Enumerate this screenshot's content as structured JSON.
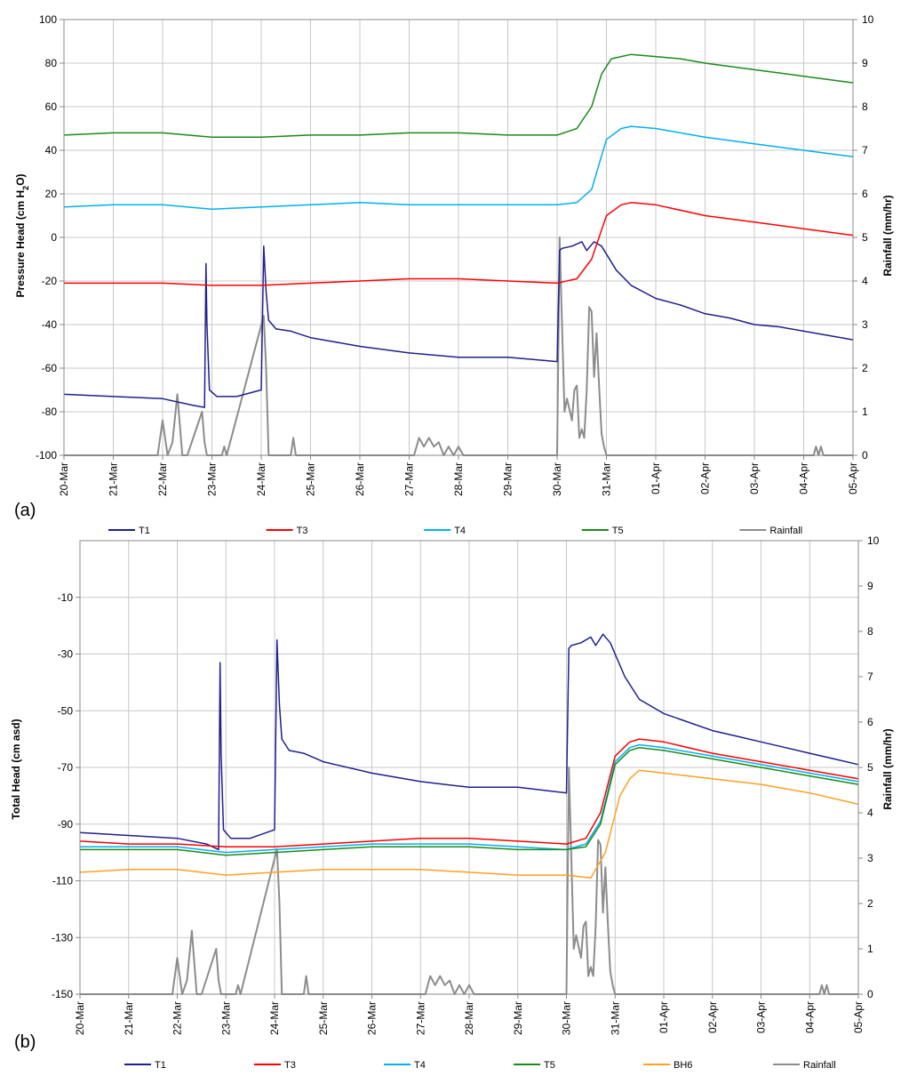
{
  "chart_data": [
    {
      "type": "line",
      "panel_label": "(a)",
      "xlim": [
        0,
        16
      ],
      "x_tick_labels": [
        "20-Mar",
        "21-Mar",
        "22-Mar",
        "23-Mar",
        "24-Mar",
        "25-Mar",
        "26-Mar",
        "27-Mar",
        "28-Mar",
        "29-Mar",
        "30-Mar",
        "31-Mar",
        "01-Apr",
        "02-Apr",
        "03-Apr",
        "04-Apr",
        "05-Apr"
      ],
      "ylabel": "Pressure Head (cm H2O)",
      "ylim": [
        -100,
        100
      ],
      "y_ticks": [
        -100,
        -80,
        -60,
        -40,
        -20,
        0,
        20,
        40,
        60,
        80,
        100
      ],
      "y2label": "Rainfall (mm/hr)",
      "y2lim": [
        0,
        10
      ],
      "y2_ticks": [
        0,
        1,
        2,
        3,
        4,
        5,
        6,
        7,
        8,
        9,
        10
      ],
      "legend_position": "bottom",
      "series": [
        {
          "name": "T1",
          "axis": "left",
          "color": "#1f1f8f",
          "x": [
            0,
            1,
            2,
            2.6,
            2.85,
            2.88,
            2.9,
            2.95,
            3.1,
            3.5,
            4.0,
            4.05,
            4.1,
            4.15,
            4.3,
            4.6,
            5,
            6,
            7,
            8,
            9,
            10,
            10.05,
            10.1,
            10.3,
            10.5,
            10.6,
            10.75,
            10.9,
            11.2,
            11.5,
            12,
            12.5,
            13,
            13.5,
            14,
            14.5,
            15,
            15.5,
            16
          ],
          "y": [
            -72,
            -73,
            -74,
            -77,
            -78,
            -12,
            -40,
            -70,
            -73,
            -73,
            -70,
            -4,
            -25,
            -38,
            -42,
            -43,
            -46,
            -50,
            -53,
            -55,
            -55,
            -57,
            -6,
            -5,
            -4,
            -2,
            -6,
            -2,
            -4,
            -15,
            -22,
            -28,
            -31,
            -35,
            -37,
            -40,
            -41,
            -43,
            -45,
            -47
          ]
        },
        {
          "name": "T3",
          "axis": "left",
          "color": "#ff0000",
          "x": [
            0,
            1,
            2,
            3,
            4,
            5,
            6,
            7,
            8,
            9,
            10,
            10.4,
            10.7,
            11,
            11.3,
            11.5,
            12,
            13,
            14,
            15,
            16
          ],
          "y": [
            -21,
            -21,
            -21,
            -22,
            -22,
            -21,
            -20,
            -19,
            -19,
            -20,
            -21,
            -19,
            -10,
            10,
            15,
            16,
            15,
            10,
            7,
            4,
            1
          ]
        },
        {
          "name": "T4",
          "axis": "left",
          "color": "#00b0f0",
          "x": [
            0,
            1,
            2,
            3,
            4,
            5,
            6,
            7,
            8,
            9,
            10,
            10.4,
            10.7,
            11,
            11.3,
            11.5,
            12,
            13,
            14,
            15,
            16
          ],
          "y": [
            14,
            15,
            15,
            13,
            14,
            15,
            16,
            15,
            15,
            15,
            15,
            16,
            22,
            45,
            50,
            51,
            50,
            46,
            43,
            40,
            37
          ]
        },
        {
          "name": "T5",
          "axis": "left",
          "color": "#1a8a1a",
          "x": [
            0,
            1,
            2,
            3,
            4,
            5,
            6,
            7,
            8,
            9,
            10,
            10.4,
            10.7,
            10.9,
            11.1,
            11.3,
            11.5,
            12,
            12.5,
            13,
            14,
            15,
            16
          ],
          "y": [
            47,
            48,
            48,
            46,
            46,
            47,
            47,
            48,
            48,
            47,
            47,
            50,
            60,
            75,
            82,
            83,
            84,
            83,
            82,
            80,
            77,
            74,
            71
          ]
        },
        {
          "name": "Rainfall",
          "axis": "right",
          "color": "#8c8c8c",
          "x": [
            0,
            1.9,
            2.0,
            2.1,
            2.2,
            2.3,
            2.4,
            2.5,
            2.8,
            2.85,
            2.9,
            3.2,
            3.25,
            3.3,
            4.05,
            4.1,
            4.15,
            4.2,
            4.6,
            4.65,
            4.7,
            7.1,
            7.2,
            7.3,
            7.4,
            7.5,
            7.6,
            7.7,
            7.8,
            7.9,
            8.0,
            8.1,
            8.2,
            10.0,
            10.05,
            10.1,
            10.15,
            10.2,
            10.3,
            10.35,
            10.4,
            10.45,
            10.5,
            10.55,
            10.6,
            10.65,
            10.7,
            10.75,
            10.8,
            10.85,
            10.9,
            10.95,
            11.0,
            15.2,
            15.25,
            15.3,
            15.35,
            15.4,
            15.45,
            16
          ],
          "y": [
            0,
            0,
            0.8,
            0,
            0.3,
            1.4,
            0,
            0,
            1.0,
            0.3,
            0,
            0,
            0.2,
            0,
            3.2,
            2.0,
            0,
            0,
            0,
            0.4,
            0,
            0,
            0.4,
            0.2,
            0.4,
            0.2,
            0.3,
            0,
            0.2,
            0,
            0.2,
            0,
            0,
            0,
            5.0,
            3.0,
            1.0,
            1.3,
            0.8,
            1.5,
            1.6,
            0.4,
            0.6,
            0.4,
            1.5,
            3.4,
            3.3,
            1.8,
            2.8,
            1.6,
            0.5,
            0.2,
            0,
            0,
            0.2,
            0,
            0.2,
            0,
            0,
            0
          ]
        }
      ]
    },
    {
      "type": "line",
      "panel_label": "(b)",
      "xlim": [
        0,
        16
      ],
      "x_tick_labels": [
        "20-Mar",
        "21-Mar",
        "22-Mar",
        "23-Mar",
        "24-Mar",
        "25-Mar",
        "26-Mar",
        "27-Mar",
        "28-Mar",
        "29-Mar",
        "30-Mar",
        "31-Mar",
        "01-Apr",
        "02-Apr",
        "03-Apr",
        "04-Apr",
        "05-Apr"
      ],
      "ylabel": "Total Head (cm asd)",
      "ylim": [
        -150,
        10
      ],
      "y_ticks": [
        -150,
        -130,
        -110,
        -90,
        -70,
        -50,
        -30,
        -10
      ],
      "y2label": "Rainfall (mm/hr)",
      "y2lim": [
        0,
        10
      ],
      "y2_ticks": [
        0,
        1,
        2,
        3,
        4,
        5,
        6,
        7,
        8,
        9,
        10
      ],
      "legend_position": "bottom",
      "series": [
        {
          "name": "T1",
          "axis": "left",
          "color": "#1f1f8f",
          "x": [
            0,
            1,
            2,
            2.6,
            2.85,
            2.88,
            2.9,
            2.95,
            3.1,
            3.5,
            4.0,
            4.05,
            4.1,
            4.15,
            4.3,
            4.6,
            5,
            6,
            7,
            8,
            9,
            10,
            10.05,
            10.1,
            10.3,
            10.5,
            10.6,
            10.75,
            10.9,
            11.2,
            11.5,
            12,
            12.5,
            13,
            13.5,
            14,
            14.5,
            15,
            15.5,
            16
          ],
          "y": [
            -93,
            -94,
            -95,
            -97,
            -99,
            -33,
            -65,
            -92,
            -95,
            -95,
            -92,
            -25,
            -48,
            -60,
            -64,
            -65,
            -68,
            -72,
            -75,
            -77,
            -77,
            -79,
            -28,
            -27,
            -26,
            -24,
            -27,
            -23,
            -26,
            -38,
            -46,
            -51,
            -54,
            -57,
            -59,
            -61,
            -63,
            -65,
            -67,
            -69
          ]
        },
        {
          "name": "T3",
          "axis": "left",
          "color": "#ff0000",
          "x": [
            0,
            1,
            2,
            3,
            4,
            5,
            6,
            7,
            8,
            9,
            10,
            10.4,
            10.7,
            11,
            11.3,
            11.5,
            12,
            13,
            14,
            15,
            16
          ],
          "y": [
            -96,
            -97,
            -97,
            -98,
            -98,
            -97,
            -96,
            -95,
            -95,
            -96,
            -97,
            -95,
            -86,
            -66,
            -61,
            -60,
            -61,
            -65,
            -68,
            -71,
            -74
          ]
        },
        {
          "name": "T4",
          "axis": "left",
          "color": "#00b0f0",
          "x": [
            0,
            1,
            2,
            3,
            4,
            5,
            6,
            7,
            8,
            9,
            10,
            10.4,
            10.7,
            11,
            11.3,
            11.5,
            12,
            13,
            14,
            15,
            16
          ],
          "y": [
            -98,
            -98,
            -98,
            -100,
            -99,
            -98,
            -97,
            -97,
            -97,
            -98,
            -99,
            -97,
            -89,
            -68,
            -63,
            -62,
            -63,
            -66,
            -69,
            -72,
            -75
          ]
        },
        {
          "name": "T5",
          "axis": "left",
          "color": "#1a8a1a",
          "x": [
            0,
            1,
            2,
            3,
            4,
            5,
            6,
            7,
            8,
            9,
            10,
            10.4,
            10.7,
            11,
            11.3,
            11.5,
            12,
            13,
            14,
            15,
            16
          ],
          "y": [
            -99,
            -99,
            -99,
            -101,
            -100,
            -99,
            -98,
            -98,
            -98,
            -99,
            -99,
            -98,
            -90,
            -69,
            -64,
            -63,
            -64,
            -67,
            -70,
            -73,
            -76
          ]
        },
        {
          "name": "BH6",
          "axis": "left",
          "color": "#ffa020",
          "x": [
            0,
            1,
            2,
            3,
            4,
            5,
            6,
            7,
            8,
            9,
            10,
            10.5,
            10.8,
            11.1,
            11.3,
            11.5,
            12,
            13,
            14,
            15,
            16
          ],
          "y": [
            -107,
            -106,
            -106,
            -108,
            -107,
            -106,
            -106,
            -106,
            -107,
            -108,
            -108,
            -109,
            -100,
            -80,
            -74,
            -71,
            -72,
            -74,
            -76,
            -79,
            -83
          ]
        },
        {
          "name": "Rainfall",
          "axis": "right",
          "color": "#8c8c8c",
          "x": [
            0,
            1.9,
            2.0,
            2.1,
            2.2,
            2.3,
            2.4,
            2.5,
            2.8,
            2.85,
            2.9,
            3.2,
            3.25,
            3.3,
            4.05,
            4.1,
            4.15,
            4.2,
            4.6,
            4.65,
            4.7,
            7.1,
            7.2,
            7.3,
            7.4,
            7.5,
            7.6,
            7.7,
            7.8,
            7.9,
            8.0,
            8.1,
            8.2,
            10.0,
            10.05,
            10.1,
            10.15,
            10.2,
            10.3,
            10.35,
            10.4,
            10.45,
            10.5,
            10.55,
            10.6,
            10.65,
            10.7,
            10.75,
            10.8,
            10.85,
            10.9,
            10.95,
            11.0,
            15.2,
            15.25,
            15.3,
            15.35,
            15.4,
            15.45,
            16
          ],
          "y": [
            0,
            0,
            0.8,
            0,
            0.3,
            1.4,
            0,
            0,
            1.0,
            0.3,
            0,
            0,
            0.2,
            0,
            3.2,
            2.0,
            0,
            0,
            0,
            0.4,
            0,
            0,
            0.4,
            0.2,
            0.4,
            0.2,
            0.3,
            0,
            0.2,
            0,
            0.2,
            0,
            0,
            0,
            5.0,
            3.0,
            1.0,
            1.3,
            0.8,
            1.5,
            1.6,
            0.4,
            0.6,
            0.4,
            1.5,
            3.4,
            3.3,
            1.8,
            2.8,
            1.6,
            0.5,
            0.2,
            0,
            0,
            0.2,
            0,
            0.2,
            0,
            0,
            0
          ]
        }
      ]
    }
  ]
}
